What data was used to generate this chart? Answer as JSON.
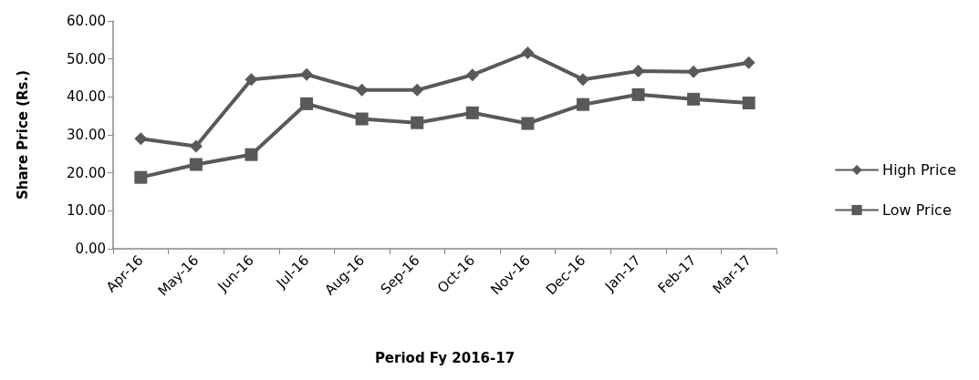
{
  "chart_data": {
    "type": "line",
    "xlabel": "Period Fy 2016-17",
    "ylabel": "Share Price (Rs.)",
    "categories": [
      "Apr-16",
      "May-16",
      "Jun-16",
      "Jul-16",
      "Aug-16",
      "Sep-16",
      "Oct-16",
      "Nov-16",
      "Dec-16",
      "Jan-17",
      "Feb-17",
      "Mar-17"
    ],
    "series": [
      {
        "name": "High Price",
        "color": "#595959",
        "marker": "diamond",
        "values": [
          29.0,
          27.0,
          44.6,
          45.9,
          41.8,
          41.8,
          45.8,
          51.6,
          44.6,
          46.8,
          46.6,
          49.0
        ]
      },
      {
        "name": "Low Price",
        "color": "#595959",
        "marker": "square",
        "values": [
          18.8,
          22.2,
          24.8,
          38.2,
          34.2,
          33.2,
          35.8,
          33.0,
          38.0,
          40.6,
          39.4,
          38.4
        ]
      }
    ],
    "ylim": [
      0,
      60
    ],
    "yticks": [
      {
        "value": 0,
        "label": "0.00"
      },
      {
        "value": 10,
        "label": "10.00"
      },
      {
        "value": 20,
        "label": "20.00"
      },
      {
        "value": 30,
        "label": "30.00"
      },
      {
        "value": 40,
        "label": "40.00"
      },
      {
        "value": 50,
        "label": "50.00"
      },
      {
        "value": 60,
        "label": "60.00"
      }
    ],
    "grid": false,
    "legend": "right",
    "line_style": "solid"
  }
}
